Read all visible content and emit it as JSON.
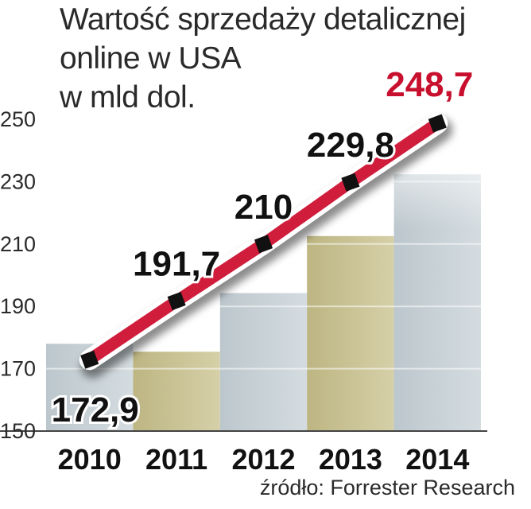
{
  "chart_data": {
    "type": "line",
    "title_lines": [
      "Wartość sprzedaży detalicznej",
      "online w USA",
      "w mld dol."
    ],
    "categories": [
      "2010",
      "2011",
      "2012",
      "2013",
      "2014"
    ],
    "values": [
      172.9,
      191.7,
      210,
      229.8,
      248.7
    ],
    "value_labels": [
      "172,9",
      "191,7",
      "210",
      "229,8",
      "248,7"
    ],
    "yticks": [
      "250",
      "230",
      "210",
      "190",
      "170",
      "150"
    ],
    "ytick_values": [
      250,
      230,
      210,
      190,
      170,
      150
    ],
    "ylim": [
      150,
      250
    ],
    "xlabel": "",
    "ylabel": "",
    "grid": true,
    "source": "źródło: Forrester Research",
    "colors": {
      "line": "#d11d3c",
      "highlight_label": "#c8102e",
      "label": "#111111",
      "band_grey": "#c3cdd3",
      "band_olive": "#c4bd8a",
      "marker": "#111111"
    }
  }
}
